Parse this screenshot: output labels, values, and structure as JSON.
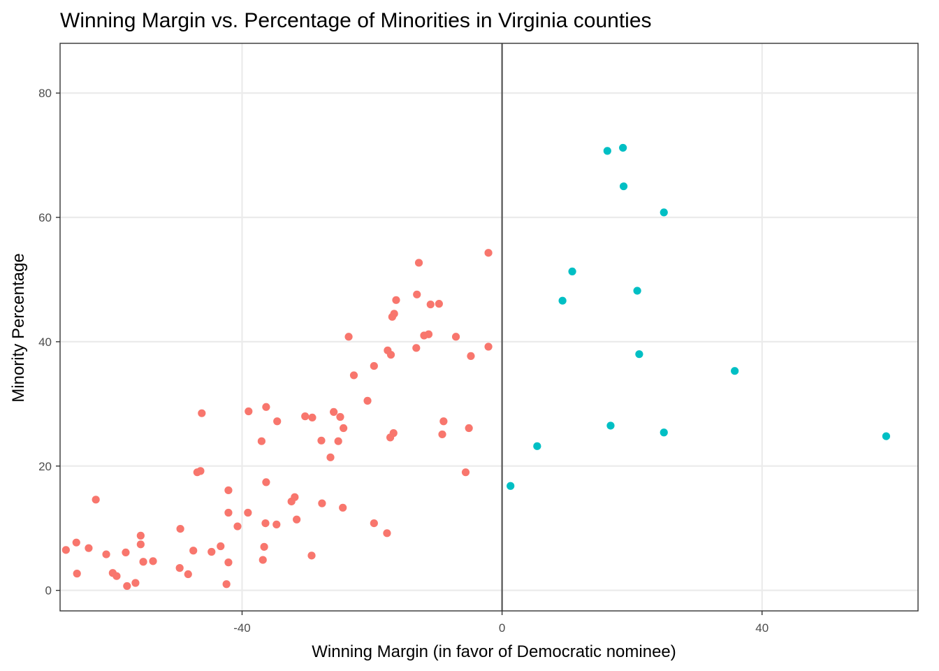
{
  "chart_data": {
    "type": "scatter",
    "title": "Winning Margin vs. Percentage of Minorities in Virginia counties",
    "xlabel": "Winning Margin (in favor of Democratic nominee)",
    "ylabel": "Minority Percentage",
    "xlim": [
      -68,
      64
    ],
    "ylim": [
      -3.3,
      88
    ],
    "x_ticks": [
      -40,
      0,
      40
    ],
    "x_tick_labels": [
      "-40",
      "0",
      "40"
    ],
    "y_ticks": [
      0,
      20,
      40,
      60,
      80
    ],
    "y_tick_labels": [
      "0",
      "20",
      "40",
      "60",
      "80"
    ],
    "grid": true,
    "legend": "none",
    "reference_line": {
      "orientation": "vertical",
      "x": 0,
      "color": "#555555"
    },
    "series": [
      {
        "color": "#F8766D",
        "points": [
          [
            -67.1,
            6.5
          ],
          [
            -65.5,
            7.7
          ],
          [
            -65.4,
            2.7
          ],
          [
            -63.6,
            6.8
          ],
          [
            -62.5,
            14.6
          ],
          [
            -60.9,
            5.8
          ],
          [
            -59.9,
            2.8
          ],
          [
            -59.3,
            2.3
          ],
          [
            -57.9,
            6.1
          ],
          [
            -57.7,
            0.7
          ],
          [
            -56.4,
            1.2
          ],
          [
            -55.6,
            8.8
          ],
          [
            -55.6,
            7.4
          ],
          [
            -55.2,
            4.6
          ],
          [
            -53.7,
            4.7
          ],
          [
            -49.6,
            3.6
          ],
          [
            -49.5,
            9.9
          ],
          [
            -48.3,
            2.6
          ],
          [
            -47.5,
            6.4
          ],
          [
            -46.9,
            19.0
          ],
          [
            -46.4,
            19.2
          ],
          [
            -46.2,
            28.5
          ],
          [
            -44.7,
            6.2
          ],
          [
            -43.3,
            7.1
          ],
          [
            -42.4,
            1.0
          ],
          [
            -42.1,
            16.1
          ],
          [
            -42.1,
            12.5
          ],
          [
            -42.1,
            4.5
          ],
          [
            -40.7,
            10.3
          ],
          [
            -39.1,
            12.5
          ],
          [
            -39.0,
            28.8
          ],
          [
            -37.0,
            24.0
          ],
          [
            -36.8,
            4.9
          ],
          [
            -36.6,
            7.0
          ],
          [
            -36.4,
            10.8
          ],
          [
            -36.3,
            17.4
          ],
          [
            -36.3,
            29.5
          ],
          [
            -34.7,
            10.6
          ],
          [
            -34.6,
            27.2
          ],
          [
            -32.4,
            14.3
          ],
          [
            -31.9,
            15.0
          ],
          [
            -31.6,
            11.4
          ],
          [
            -30.3,
            28.0
          ],
          [
            -29.3,
            5.6
          ],
          [
            -29.2,
            27.8
          ],
          [
            -27.8,
            24.1
          ],
          [
            -27.7,
            14.0
          ],
          [
            -26.4,
            21.4
          ],
          [
            -25.9,
            28.7
          ],
          [
            -25.2,
            24.0
          ],
          [
            -24.9,
            27.9
          ],
          [
            -24.5,
            13.3
          ],
          [
            -24.4,
            26.1
          ],
          [
            -23.6,
            40.8
          ],
          [
            -22.8,
            34.6
          ],
          [
            -20.7,
            30.5
          ],
          [
            -19.7,
            36.1
          ],
          [
            -19.7,
            10.8
          ],
          [
            -17.7,
            9.2
          ],
          [
            -17.6,
            38.6
          ],
          [
            -17.2,
            24.6
          ],
          [
            -17.1,
            37.9
          ],
          [
            -16.9,
            44.0
          ],
          [
            -16.7,
            25.3
          ],
          [
            -16.6,
            44.5
          ],
          [
            -16.3,
            46.7
          ],
          [
            -13.2,
            39.0
          ],
          [
            -13.1,
            47.6
          ],
          [
            -12.8,
            52.7
          ],
          [
            -12.0,
            41.0
          ],
          [
            -11.3,
            41.2
          ],
          [
            -11.0,
            46.0
          ],
          [
            -9.7,
            46.1
          ],
          [
            -9.2,
            25.1
          ],
          [
            -9.0,
            27.2
          ],
          [
            -7.1,
            40.8
          ],
          [
            -5.6,
            19.0
          ],
          [
            -5.1,
            26.1
          ],
          [
            -4.8,
            37.7
          ],
          [
            -2.1,
            54.3
          ],
          [
            -2.1,
            39.2
          ]
        ]
      },
      {
        "color": "#00BFC4",
        "points": [
          [
            1.3,
            16.8
          ],
          [
            5.4,
            23.2
          ],
          [
            9.3,
            46.6
          ],
          [
            10.8,
            51.3
          ],
          [
            16.2,
            70.7
          ],
          [
            16.7,
            26.5
          ],
          [
            18.6,
            71.2
          ],
          [
            18.7,
            65.0
          ],
          [
            20.8,
            48.2
          ],
          [
            21.1,
            38.0
          ],
          [
            24.9,
            25.4
          ],
          [
            24.9,
            60.8
          ],
          [
            35.8,
            35.3
          ],
          [
            59.1,
            24.8
          ]
        ]
      }
    ]
  }
}
